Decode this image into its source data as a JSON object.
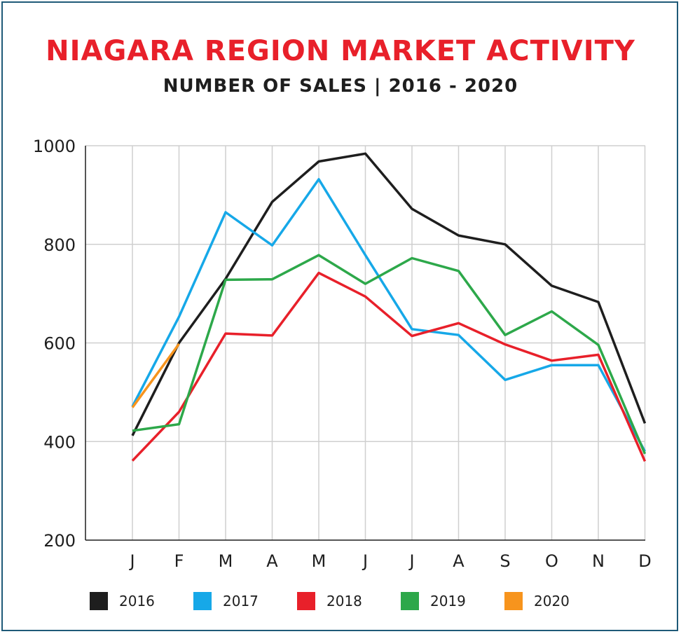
{
  "chart_data": {
    "type": "line",
    "title": "NIAGARA REGION MARKET ACTIVITY",
    "subtitle": "NUMBER OF SALES | 2016 - 2020",
    "xlabel": "",
    "ylabel": "",
    "categories": [
      "J",
      "F",
      "M",
      "A",
      "M",
      "J",
      "J",
      "A",
      "S",
      "O",
      "N",
      "D"
    ],
    "ylim": [
      200,
      1000
    ],
    "yticks": [
      200,
      400,
      600,
      800,
      1000
    ],
    "grid": true,
    "legend_position": "bottom",
    "series": [
      {
        "name": "2016",
        "color": "#1e1e1e",
        "values": [
          412,
          600,
          730,
          886,
          968,
          984,
          872,
          818,
          800,
          716,
          683,
          437
        ]
      },
      {
        "name": "2017",
        "color": "#16a8e8",
        "values": [
          471,
          653,
          865,
          798,
          932,
          778,
          628,
          616,
          525,
          555,
          555,
          380
        ]
      },
      {
        "name": "2018",
        "color": "#e8202a",
        "values": [
          361,
          460,
          619,
          615,
          742,
          694,
          614,
          640,
          597,
          564,
          576,
          360
        ]
      },
      {
        "name": "2019",
        "color": "#2da84a",
        "values": [
          422,
          435,
          728,
          729,
          778,
          720,
          772,
          746,
          616,
          664,
          596,
          375
        ]
      },
      {
        "name": "2020",
        "color": "#f7941d",
        "values": [
          469,
          598,
          null,
          null,
          null,
          null,
          null,
          null,
          null,
          null,
          null,
          null
        ]
      }
    ]
  }
}
